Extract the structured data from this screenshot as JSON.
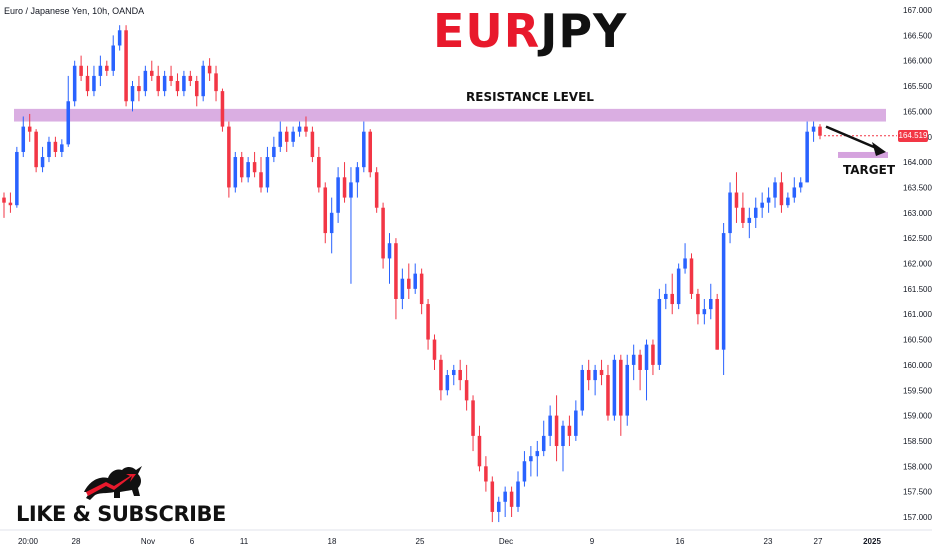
{
  "header": {
    "symbol_description": "Euro / Japanese Yen, 10h, OANDA",
    "title_part1": "EUR",
    "title_part2": "JPY"
  },
  "annotations": {
    "resistance_label": "RESISTANCE LEVEL",
    "target_label": "TARGET",
    "current_price": "164.519"
  },
  "branding": {
    "cta_text": "LIKE & SUBSCRIBE",
    "logo_icon": "bull-bear-icon"
  },
  "colors": {
    "bullish": "#2962ff",
    "bearish": "#f23645",
    "zone": "#ce93d8",
    "title_red": "#e8192c",
    "title_dark": "#111111"
  },
  "chart_data": {
    "type": "candlestick",
    "title": "EURJPY",
    "ylim": [
      156.8,
      167.1
    ],
    "y_ticks": [
      "167.000",
      "166.500",
      "166.000",
      "165.500",
      "165.000",
      "164.500",
      "164.000",
      "163.500",
      "163.000",
      "162.500",
      "162.000",
      "161.500",
      "161.000",
      "160.500",
      "160.000",
      "159.500",
      "159.000",
      "158.500",
      "158.000",
      "157.500",
      "157.000"
    ],
    "x_ticks": [
      "20:00",
      "28",
      "Nov",
      "6",
      "11",
      "18",
      "25",
      "Dec",
      "9",
      "16",
      "23",
      "27",
      "2025"
    ],
    "resistance_zone": [
      164.8,
      165.05
    ],
    "target_zone": [
      164.1,
      164.2
    ],
    "last_price": 164.519,
    "candles": [
      [
        163.3,
        163.4,
        162.9,
        163.2
      ],
      [
        163.2,
        163.4,
        163.0,
        163.15
      ],
      [
        163.15,
        164.3,
        163.1,
        164.2
      ],
      [
        164.2,
        164.9,
        164.1,
        164.7
      ],
      [
        164.7,
        164.95,
        164.4,
        164.6
      ],
      [
        164.6,
        164.65,
        163.8,
        163.9
      ],
      [
        163.9,
        164.3,
        163.8,
        164.1
      ],
      [
        164.1,
        164.5,
        164.0,
        164.4
      ],
      [
        164.4,
        164.5,
        164.1,
        164.2
      ],
      [
        164.2,
        164.45,
        164.1,
        164.35
      ],
      [
        164.35,
        165.7,
        164.3,
        165.2
      ],
      [
        165.2,
        166.0,
        165.1,
        165.9
      ],
      [
        165.9,
        166.1,
        165.6,
        165.7
      ],
      [
        165.7,
        165.9,
        165.3,
        165.4
      ],
      [
        165.4,
        165.9,
        165.3,
        165.7
      ],
      [
        165.7,
        166.1,
        165.5,
        165.9
      ],
      [
        165.9,
        166.0,
        165.7,
        165.8
      ],
      [
        165.8,
        166.5,
        165.7,
        166.3
      ],
      [
        166.3,
        166.7,
        166.2,
        166.6
      ],
      [
        166.6,
        166.7,
        165.1,
        165.2
      ],
      [
        165.2,
        165.6,
        165.0,
        165.5
      ],
      [
        165.5,
        165.7,
        165.2,
        165.4
      ],
      [
        165.4,
        165.9,
        165.3,
        165.8
      ],
      [
        165.8,
        166.0,
        165.6,
        165.7
      ],
      [
        165.7,
        165.9,
        165.3,
        165.4
      ],
      [
        165.4,
        165.8,
        165.3,
        165.7
      ],
      [
        165.7,
        165.9,
        165.5,
        165.6
      ],
      [
        165.6,
        165.75,
        165.3,
        165.4
      ],
      [
        165.4,
        165.8,
        165.3,
        165.7
      ],
      [
        165.7,
        165.8,
        165.5,
        165.6
      ],
      [
        165.6,
        165.7,
        165.1,
        165.3
      ],
      [
        165.3,
        166.0,
        165.2,
        165.9
      ],
      [
        165.9,
        166.05,
        165.6,
        165.75
      ],
      [
        165.75,
        165.9,
        165.2,
        165.4
      ],
      [
        165.4,
        165.45,
        164.6,
        164.7
      ],
      [
        164.7,
        164.8,
        163.3,
        163.5
      ],
      [
        163.5,
        164.2,
        163.4,
        164.1
      ],
      [
        164.1,
        164.2,
        163.6,
        163.7
      ],
      [
        163.7,
        164.1,
        163.6,
        164.0
      ],
      [
        164.0,
        164.2,
        163.7,
        163.8
      ],
      [
        163.8,
        164.1,
        163.4,
        163.5
      ],
      [
        163.5,
        164.3,
        163.4,
        164.1
      ],
      [
        164.1,
        164.5,
        164.0,
        164.3
      ],
      [
        164.3,
        164.8,
        164.2,
        164.6
      ],
      [
        164.6,
        164.7,
        164.2,
        164.4
      ],
      [
        164.4,
        164.7,
        164.3,
        164.6
      ],
      [
        164.6,
        164.8,
        164.5,
        164.7
      ],
      [
        164.7,
        164.9,
        164.5,
        164.6
      ],
      [
        164.6,
        164.7,
        164.0,
        164.1
      ],
      [
        164.1,
        164.3,
        163.4,
        163.5
      ],
      [
        163.5,
        163.6,
        162.4,
        162.6
      ],
      [
        162.6,
        163.3,
        162.2,
        163.0
      ],
      [
        163.0,
        163.9,
        162.8,
        163.7
      ],
      [
        163.7,
        164.0,
        163.2,
        163.3
      ],
      [
        163.3,
        163.9,
        161.6,
        163.6
      ],
      [
        163.6,
        164.0,
        163.3,
        163.9
      ],
      [
        163.9,
        164.8,
        163.8,
        164.6
      ],
      [
        164.6,
        164.65,
        163.7,
        163.8
      ],
      [
        163.8,
        163.9,
        163.0,
        163.1
      ],
      [
        163.1,
        163.2,
        161.9,
        162.1
      ],
      [
        162.1,
        162.6,
        161.6,
        162.4
      ],
      [
        162.4,
        162.5,
        160.9,
        161.3
      ],
      [
        161.3,
        161.9,
        161.1,
        161.7
      ],
      [
        161.7,
        162.0,
        161.3,
        161.5
      ],
      [
        161.5,
        162.0,
        161.4,
        161.8
      ],
      [
        161.8,
        161.9,
        161.0,
        161.2
      ],
      [
        161.2,
        161.3,
        160.3,
        160.5
      ],
      [
        160.5,
        160.6,
        159.9,
        160.1
      ],
      [
        160.1,
        160.2,
        159.3,
        159.5
      ],
      [
        159.5,
        159.9,
        159.4,
        159.8
      ],
      [
        159.8,
        160.0,
        159.6,
        159.9
      ],
      [
        159.9,
        160.1,
        159.5,
        159.7
      ],
      [
        159.7,
        160.0,
        159.1,
        159.3
      ],
      [
        159.3,
        159.4,
        158.3,
        158.6
      ],
      [
        158.6,
        158.8,
        157.9,
        158.0
      ],
      [
        158.0,
        158.2,
        157.5,
        157.7
      ],
      [
        157.7,
        157.8,
        156.9,
        157.1
      ],
      [
        157.1,
        157.4,
        156.9,
        157.3
      ],
      [
        157.3,
        157.6,
        157.0,
        157.5
      ],
      [
        157.5,
        157.6,
        157.0,
        157.2
      ],
      [
        157.2,
        157.9,
        157.1,
        157.7
      ],
      [
        157.7,
        158.3,
        157.6,
        158.1
      ],
      [
        158.1,
        158.4,
        157.8,
        158.2
      ],
      [
        158.2,
        158.5,
        157.8,
        158.3
      ],
      [
        158.3,
        158.9,
        158.2,
        158.6
      ],
      [
        158.6,
        159.2,
        158.4,
        159.0
      ],
      [
        159.0,
        159.4,
        158.1,
        158.4
      ],
      [
        158.4,
        158.9,
        157.9,
        158.8
      ],
      [
        158.8,
        159.0,
        158.4,
        158.6
      ],
      [
        158.6,
        159.3,
        158.5,
        159.1
      ],
      [
        159.1,
        160.0,
        159.0,
        159.9
      ],
      [
        159.9,
        160.1,
        159.5,
        159.7
      ],
      [
        159.7,
        160.0,
        159.4,
        159.9
      ],
      [
        159.9,
        160.1,
        159.6,
        159.8
      ],
      [
        159.8,
        160.0,
        158.9,
        159.0
      ],
      [
        159.0,
        160.2,
        158.9,
        160.1
      ],
      [
        160.1,
        160.2,
        158.6,
        159.0
      ],
      [
        159.0,
        160.2,
        158.8,
        160.0
      ],
      [
        160.0,
        160.4,
        159.7,
        160.2
      ],
      [
        160.2,
        160.3,
        159.5,
        159.9
      ],
      [
        159.9,
        160.5,
        159.3,
        160.4
      ],
      [
        160.4,
        160.5,
        159.8,
        160.0
      ],
      [
        160.0,
        161.5,
        159.9,
        161.3
      ],
      [
        161.3,
        161.6,
        161.1,
        161.4
      ],
      [
        161.4,
        161.8,
        161.0,
        161.2
      ],
      [
        161.2,
        162.0,
        161.1,
        161.9
      ],
      [
        161.9,
        162.4,
        161.8,
        162.1
      ],
      [
        162.1,
        162.2,
        161.3,
        161.4
      ],
      [
        161.4,
        161.5,
        160.8,
        161.0
      ],
      [
        161.0,
        161.3,
        160.8,
        161.1
      ],
      [
        161.1,
        161.6,
        160.9,
        161.3
      ],
      [
        161.3,
        161.4,
        160.3,
        160.3
      ],
      [
        160.3,
        162.8,
        159.8,
        162.6
      ],
      [
        162.6,
        163.6,
        162.4,
        163.4
      ],
      [
        163.4,
        163.8,
        162.8,
        163.1
      ],
      [
        163.1,
        163.4,
        162.7,
        162.8
      ],
      [
        162.8,
        163.1,
        162.5,
        162.9
      ],
      [
        162.9,
        163.3,
        162.7,
        163.1
      ],
      [
        163.1,
        163.4,
        162.9,
        163.2
      ],
      [
        163.2,
        163.5,
        163.0,
        163.3
      ],
      [
        163.3,
        163.7,
        163.1,
        163.6
      ],
      [
        163.6,
        163.8,
        163.0,
        163.15
      ],
      [
        163.15,
        163.4,
        163.1,
        163.3
      ],
      [
        163.3,
        163.7,
        163.2,
        163.5
      ],
      [
        163.5,
        163.7,
        163.4,
        163.6
      ],
      [
        163.6,
        164.8,
        163.6,
        164.6
      ],
      [
        164.6,
        164.8,
        164.4,
        164.7
      ],
      [
        164.7,
        164.75,
        164.45,
        164.52
      ]
    ]
  }
}
